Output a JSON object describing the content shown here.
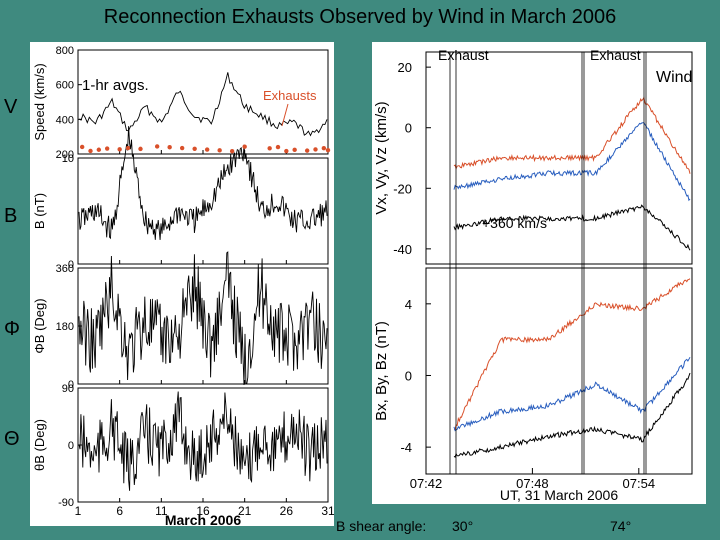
{
  "title": "Reconnection Exhausts Observed by Wind in March 2006",
  "side_labels": [
    "V",
    "B",
    "Φ",
    "Θ"
  ],
  "caption": {
    "label": "B shear angle:",
    "value1": "30°",
    "value2": "74°"
  },
  "colors": {
    "background": "#3f8a7f",
    "red_series": "#d9502a",
    "blue_series": "#2a5fbf",
    "black_series": "#000000"
  },
  "chart_data": [
    {
      "type": "line",
      "panel": "left-speed",
      "ylabel": "Speed (km/s)",
      "ylim": [
        200,
        800
      ],
      "yticks": [
        200,
        400,
        600,
        800
      ],
      "annotations": [
        "1-hr avgs.",
        "Exhausts"
      ],
      "x": [
        1,
        3,
        5,
        7,
        9,
        11,
        13,
        15,
        17,
        19,
        21,
        23,
        25,
        27,
        29,
        31
      ],
      "values": [
        420,
        380,
        500,
        330,
        470,
        380,
        560,
        420,
        380,
        650,
        480,
        420,
        360,
        380,
        300,
        390
      ],
      "exhaust_days": [
        1.5,
        2.5,
        3.5,
        4.5,
        6,
        7,
        8.5,
        10.5,
        12,
        13.5,
        15,
        16.5,
        18,
        19.5,
        21,
        24,
        25,
        26,
        27,
        28.5,
        29.5,
        30.5,
        31
      ]
    },
    {
      "type": "line",
      "panel": "left-B",
      "ylabel": "B (nT)",
      "ylim": [
        0,
        10
      ],
      "yticks": [
        0,
        10
      ],
      "x": [
        1,
        3,
        5,
        7,
        9,
        11,
        13,
        15,
        17,
        19,
        21,
        23,
        25,
        27,
        29,
        31
      ],
      "values": [
        4,
        5,
        3,
        12,
        4,
        3,
        5,
        4,
        6,
        9,
        11,
        5,
        6,
        4,
        4,
        5
      ]
    },
    {
      "type": "line",
      "panel": "left-phi",
      "ylabel": "ΦB (Deg)",
      "ylim": [
        0,
        360
      ],
      "yticks": [
        0,
        180,
        360
      ],
      "x": [
        1,
        3,
        5,
        7,
        9,
        11,
        13,
        15,
        17,
        19,
        21,
        23,
        25,
        27,
        29,
        31
      ],
      "values": [
        180,
        120,
        300,
        90,
        200,
        140,
        160,
        300,
        120,
        320,
        60,
        300,
        150,
        140,
        200,
        130
      ]
    },
    {
      "type": "line",
      "panel": "left-theta",
      "ylabel": "θB (Deg)",
      "ylim": [
        -90,
        90
      ],
      "yticks": [
        -90,
        0,
        90
      ],
      "xlabel": "March 2006",
      "xtick_labels": [
        "1",
        "6",
        "11",
        "16",
        "21",
        "26",
        "31"
      ],
      "x": [
        1,
        3,
        5,
        7,
        9,
        11,
        13,
        15,
        17,
        19,
        21,
        23,
        25,
        27,
        29,
        31
      ],
      "values": [
        10,
        -20,
        30,
        -40,
        20,
        -10,
        40,
        -30,
        10,
        50,
        -50,
        20,
        -10,
        30,
        -20,
        10
      ]
    },
    {
      "type": "line",
      "panel": "right-velocity",
      "ylabel": "Vx, Vy, Vz (km/s)",
      "ylim": [
        -45,
        25
      ],
      "yticks": [
        -40,
        -20,
        0,
        20
      ],
      "annotations": [
        "Exhaust",
        "Exhaust",
        "Wind",
        "+360 km/s"
      ],
      "x": [
        "07:42",
        "07:45",
        "07:48",
        "07:51",
        "07:54",
        "07:57"
      ],
      "series": [
        {
          "name": "Vx",
          "values": [
            -13,
            -10,
            -10,
            -10,
            10,
            -15
          ]
        },
        {
          "name": "Vy",
          "values": [
            -20,
            -17,
            -15,
            -15,
            2,
            -24
          ]
        },
        {
          "name": "Vz",
          "values": [
            -33,
            -30,
            -30,
            -30,
            -26,
            -40
          ]
        }
      ]
    },
    {
      "type": "line",
      "panel": "right-B",
      "ylabel": "Bx, By, Bz (nT)",
      "ylim": [
        -5.5,
        6
      ],
      "yticks": [
        -4,
        0,
        4
      ],
      "xlabel": "UT, 31 March 2006",
      "xtick_labels": [
        "07:42",
        "07:48",
        "07:54"
      ],
      "x": [
        "07:42",
        "07:45",
        "07:48",
        "07:51",
        "07:54",
        "07:57"
      ],
      "series": [
        {
          "name": "Bx",
          "values": [
            -3,
            2,
            2,
            4,
            3.7,
            5.5
          ]
        },
        {
          "name": "By",
          "values": [
            -3,
            -2,
            -1.7,
            -0.5,
            -2,
            1
          ]
        },
        {
          "name": "Bz",
          "values": [
            -4.5,
            -4,
            -3.4,
            -3,
            -3.6,
            0
          ]
        }
      ]
    }
  ]
}
